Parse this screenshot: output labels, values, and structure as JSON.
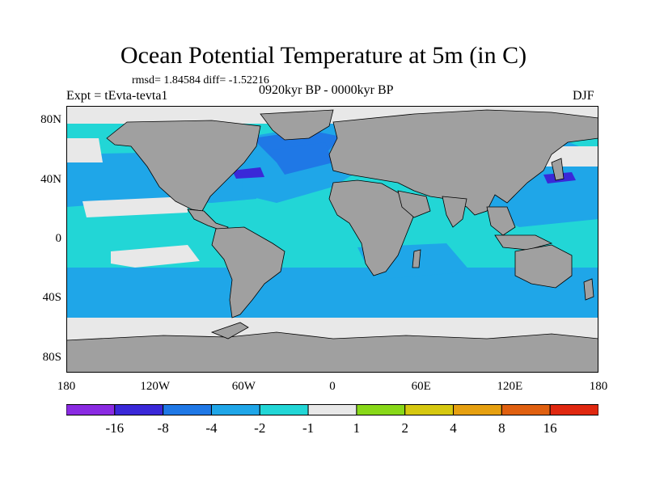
{
  "title": "Ocean Potential Temperature at 5m (in C)",
  "stats": "rmsd= 1.84584  diff= -1.52216",
  "experiment": "Expt = tEvta-tevta1",
  "period": "0920kyr BP - 0000kyr BP",
  "season": "DJF",
  "lat_ticks": [
    {
      "label": "80N",
      "lat": 80
    },
    {
      "label": "40N",
      "lat": 40
    },
    {
      "label": "0",
      "lat": 0
    },
    {
      "label": "40S",
      "lat": -40
    },
    {
      "label": "80S",
      "lat": -80
    }
  ],
  "lon_ticks": [
    {
      "label": "180",
      "lon": -180
    },
    {
      "label": "120W",
      "lon": -120
    },
    {
      "label": "60W",
      "lon": -60
    },
    {
      "label": "0",
      "lon": 0
    },
    {
      "label": "60E",
      "lon": 60
    },
    {
      "label": "120E",
      "lon": 120
    },
    {
      "label": "180",
      "lon": 180
    }
  ],
  "colorbar": {
    "bins": [
      "#8a2be2",
      "#3a28d8",
      "#1f78e6",
      "#1fa6e8",
      "#22d6d6",
      "#e8e8e8",
      "#88d818",
      "#d6c810",
      "#e6a010",
      "#e06010",
      "#e02810"
    ],
    "labels": [
      "-16",
      "-8",
      "-4",
      "-2",
      "-1",
      "1",
      "2",
      "4",
      "8",
      "16"
    ]
  },
  "colors": {
    "land": "#a0a0a0",
    "ice": "#e8e8e8",
    "ocean": "#22d6d6",
    "cool": "#1fa6e8",
    "cold": "#1f78e6",
    "coldest": "#3a28d8",
    "warm": "#88d818",
    "warmer": "#d6c810"
  }
}
